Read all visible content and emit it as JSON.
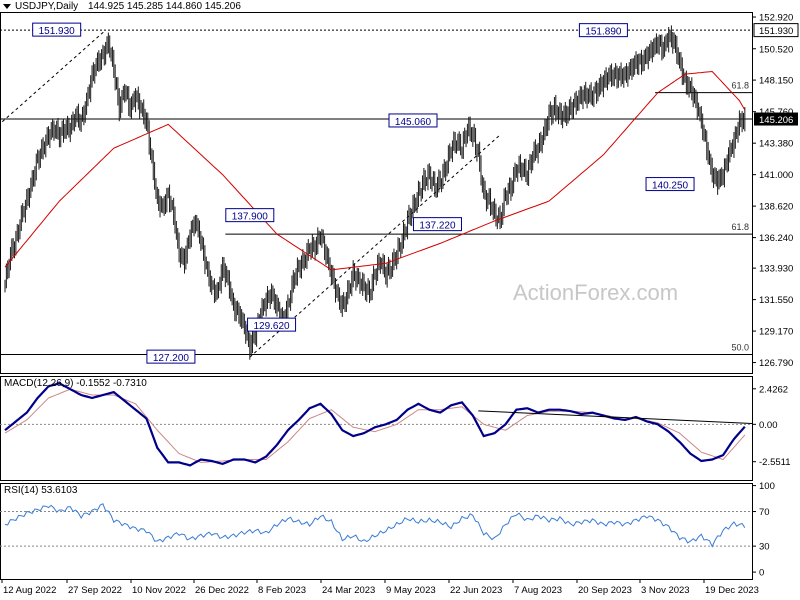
{
  "header": {
    "symbol": "USDJPY,Daily",
    "ohlc": "144.925 145.285 144.860 145.206"
  },
  "watermark": "ActionForex.com",
  "colors": {
    "candle": "#1a1a1a",
    "ema": "#d40000",
    "macd_line": "#00008b",
    "signal_line": "#cc8888",
    "rsi_line": "#3a7bd5",
    "level_line": "#000000",
    "label_border": "#00008b",
    "current_box": "#000000"
  },
  "chart_data": [
    {
      "type": "candlestick",
      "name": "price",
      "ylim": [
        126.0,
        153.3
      ],
      "y_ticks": [
        "152.920",
        "150.520",
        "148.150",
        "145.760",
        "143.380",
        "141.000",
        "138.620",
        "136.240",
        "133.930",
        "131.550",
        "129.170",
        "126.790"
      ],
      "x_ticks": [
        "12 Aug 2022",
        "27 Sep 2022",
        "10 Nov 2022",
        "26 Dec 2022",
        "8 Feb 2023",
        "24 Mar 2023",
        "9 May 2023",
        "22 Jun 2023",
        "7 Aug 2023",
        "20 Sep 2023",
        "3 Nov 2023",
        "19 Dec 2023"
      ],
      "close_path": [
        [
          0,
          132.8
        ],
        [
          4,
          135.0
        ],
        [
          8,
          136.0
        ],
        [
          12,
          137.8
        ],
        [
          16,
          139.0
        ],
        [
          20,
          140.5
        ],
        [
          24,
          142.2
        ],
        [
          28,
          143.0
        ],
        [
          32,
          144.0
        ],
        [
          36,
          144.5
        ],
        [
          40,
          144.0
        ],
        [
          44,
          144.5
        ],
        [
          48,
          144.5
        ],
        [
          52,
          145.5
        ],
        [
          56,
          145.0
        ],
        [
          60,
          146.5
        ],
        [
          64,
          148.5
        ],
        [
          68,
          149.5
        ],
        [
          72,
          150.0
        ],
        [
          76,
          151.0
        ],
        [
          80,
          149.0
        ],
        [
          84,
          146.0
        ],
        [
          88,
          147.5
        ],
        [
          92,
          146.0
        ],
        [
          96,
          147.0
        ],
        [
          100,
          146.0
        ],
        [
          104,
          145.0
        ],
        [
          108,
          142.0
        ],
        [
          112,
          139.0
        ],
        [
          116,
          138.5
        ],
        [
          120,
          139.5
        ],
        [
          124,
          138.0
        ],
        [
          128,
          135.0
        ],
        [
          132,
          134.5
        ],
        [
          136,
          136.5
        ],
        [
          140,
          137.5
        ],
        [
          144,
          136.0
        ],
        [
          148,
          134.0
        ],
        [
          152,
          132.5
        ],
        [
          156,
          132.0
        ],
        [
          160,
          134.0
        ],
        [
          164,
          133.0
        ],
        [
          168,
          131.0
        ],
        [
          172,
          130.5
        ],
        [
          176,
          129.5
        ],
        [
          180,
          128.0
        ],
        [
          184,
          129.0
        ],
        [
          188,
          130.5
        ],
        [
          192,
          131.5
        ],
        [
          196,
          132.0
        ],
        [
          200,
          131.0
        ],
        [
          204,
          130.0
        ],
        [
          208,
          131.0
        ],
        [
          212,
          133.0
        ],
        [
          216,
          134.0
        ],
        [
          220,
          134.5
        ],
        [
          224,
          135.5
        ],
        [
          228,
          135.5
        ],
        [
          232,
          136.5
        ],
        [
          236,
          135.0
        ],
        [
          240,
          133.5
        ],
        [
          244,
          132.0
        ],
        [
          248,
          131.0
        ],
        [
          252,
          132.0
        ],
        [
          256,
          133.5
        ],
        [
          260,
          133.0
        ],
        [
          264,
          132.5
        ],
        [
          268,
          132.0
        ],
        [
          272,
          133.5
        ],
        [
          276,
          134.5
        ],
        [
          280,
          133.5
        ],
        [
          284,
          134.0
        ],
        [
          288,
          135.0
        ],
        [
          292,
          136.0
        ],
        [
          296,
          137.5
        ],
        [
          300,
          138.5
        ],
        [
          304,
          139.5
        ],
        [
          308,
          140.5
        ],
        [
          312,
          141.0
        ],
        [
          316,
          140.0
        ],
        [
          320,
          140.5
        ],
        [
          324,
          141.5
        ],
        [
          328,
          143.0
        ],
        [
          332,
          143.5
        ],
        [
          336,
          143.0
        ],
        [
          340,
          144.5
        ],
        [
          344,
          144.0
        ],
        [
          348,
          142.5
        ],
        [
          352,
          139.5
        ],
        [
          356,
          139.0
        ],
        [
          360,
          138.0
        ],
        [
          364,
          137.5
        ],
        [
          368,
          139.5
        ],
        [
          372,
          140.0
        ],
        [
          376,
          141.5
        ],
        [
          380,
          141.5
        ],
        [
          384,
          141.0
        ],
        [
          388,
          142.5
        ],
        [
          392,
          143.0
        ],
        [
          396,
          144.0
        ],
        [
          400,
          145.5
        ],
        [
          404,
          146.0
        ],
        [
          408,
          145.5
        ],
        [
          412,
          145.5
        ],
        [
          416,
          146.0
        ],
        [
          420,
          146.5
        ],
        [
          424,
          147.0
        ],
        [
          428,
          147.0
        ],
        [
          432,
          147.0
        ],
        [
          436,
          147.5
        ],
        [
          440,
          148.0
        ],
        [
          444,
          148.5
        ],
        [
          448,
          148.5
        ],
        [
          452,
          148.5
        ],
        [
          456,
          148.5
        ],
        [
          460,
          149.0
        ],
        [
          464,
          149.5
        ],
        [
          468,
          149.5
        ],
        [
          472,
          150.0
        ],
        [
          476,
          150.5
        ],
        [
          480,
          151.0
        ],
        [
          484,
          150.5
        ],
        [
          488,
          151.5
        ],
        [
          492,
          151.0
        ],
        [
          496,
          149.5
        ],
        [
          500,
          148.0
        ],
        [
          504,
          147.5
        ],
        [
          508,
          146.5
        ],
        [
          512,
          145.0
        ],
        [
          516,
          143.0
        ],
        [
          520,
          141.0
        ],
        [
          524,
          140.5
        ],
        [
          528,
          141.0
        ],
        [
          532,
          142.5
        ],
        [
          536,
          143.5
        ],
        [
          540,
          145.0
        ],
        [
          544,
          145.2
        ]
      ],
      "moving_average": [
        [
          0,
          134.0
        ],
        [
          40,
          139.0
        ],
        [
          80,
          143.0
        ],
        [
          120,
          144.8
        ],
        [
          160,
          141.0
        ],
        [
          200,
          136.5
        ],
        [
          240,
          133.8
        ],
        [
          280,
          134.3
        ],
        [
          320,
          135.8
        ],
        [
          360,
          137.5
        ],
        [
          400,
          139.0
        ],
        [
          440,
          142.5
        ],
        [
          480,
          147.2
        ],
        [
          500,
          148.6
        ],
        [
          520,
          148.8
        ],
        [
          540,
          146.6
        ],
        [
          544,
          145.9
        ]
      ],
      "levels": [
        {
          "value": 151.93,
          "style": "dotted"
        },
        {
          "value": 145.206,
          "style": "thin"
        },
        {
          "value": 147.2,
          "style": "solid",
          "label": "61.8"
        },
        {
          "value": 136.5,
          "style": "solid",
          "label": "61.8"
        },
        {
          "value": 127.4,
          "style": "solid",
          "label": "50.0"
        }
      ],
      "trendlines": [
        {
          "from": [
            -2,
            145.0
          ],
          "to": [
            74,
            151.93
          ],
          "style": "dashed"
        },
        {
          "from": [
            180,
            127.2
          ],
          "to": [
            364,
            144.0
          ],
          "style": "dashed"
        }
      ],
      "annotations": [
        "151.930",
        "145.060",
        "137.900",
        "137.220",
        "129.620",
        "127.200",
        "151.890",
        "140.250"
      ],
      "current_value": "145.206"
    },
    {
      "type": "line",
      "name": "MACD",
      "title": "MACD(12,26,9) -0.1552 -0.7310",
      "y_ticks": [
        "2.4262",
        "0.00",
        "-2.5511"
      ],
      "ylim": [
        -3.8,
        3.3
      ],
      "macd_path": [
        [
          0,
          -0.4
        ],
        [
          8,
          0.2
        ],
        [
          16,
          0.8
        ],
        [
          24,
          1.8
        ],
        [
          32,
          2.6
        ],
        [
          40,
          2.8
        ],
        [
          48,
          2.4
        ],
        [
          56,
          2.0
        ],
        [
          64,
          1.8
        ],
        [
          72,
          2.0
        ],
        [
          80,
          2.2
        ],
        [
          88,
          1.6
        ],
        [
          96,
          1.0
        ],
        [
          104,
          0.4
        ],
        [
          112,
          -1.6
        ],
        [
          120,
          -2.6
        ],
        [
          128,
          -2.6
        ],
        [
          136,
          -2.8
        ],
        [
          144,
          -2.4
        ],
        [
          152,
          -2.5
        ],
        [
          160,
          -2.7
        ],
        [
          168,
          -2.4
        ],
        [
          176,
          -2.4
        ],
        [
          184,
          -2.6
        ],
        [
          192,
          -2.2
        ],
        [
          200,
          -1.4
        ],
        [
          208,
          -0.4
        ],
        [
          216,
          0.3
        ],
        [
          224,
          1.1
        ],
        [
          232,
          1.4
        ],
        [
          240,
          0.7
        ],
        [
          248,
          -0.4
        ],
        [
          256,
          -0.8
        ],
        [
          264,
          -0.6
        ],
        [
          272,
          -0.2
        ],
        [
          280,
          0.0
        ],
        [
          288,
          0.3
        ],
        [
          296,
          1.0
        ],
        [
          304,
          1.4
        ],
        [
          312,
          1.0
        ],
        [
          320,
          0.8
        ],
        [
          328,
          1.3
        ],
        [
          336,
          1.5
        ],
        [
          344,
          0.6
        ],
        [
          352,
          -0.8
        ],
        [
          360,
          -0.6
        ],
        [
          368,
          0.0
        ],
        [
          376,
          1.0
        ],
        [
          384,
          1.1
        ],
        [
          392,
          0.8
        ],
        [
          400,
          1.0
        ],
        [
          408,
          1.0
        ],
        [
          416,
          0.9
        ],
        [
          424,
          0.7
        ],
        [
          432,
          0.8
        ],
        [
          440,
          0.6
        ],
        [
          448,
          0.4
        ],
        [
          456,
          0.3
        ],
        [
          464,
          0.5
        ],
        [
          472,
          0.2
        ],
        [
          480,
          0.0
        ],
        [
          488,
          -0.5
        ],
        [
          496,
          -1.2
        ],
        [
          504,
          -2.0
        ],
        [
          512,
          -2.5
        ],
        [
          520,
          -2.4
        ],
        [
          528,
          -2.1
        ],
        [
          536,
          -1.0
        ],
        [
          544,
          -0.16
        ]
      ],
      "signal_path": [
        [
          0,
          -0.6
        ],
        [
          16,
          0.3
        ],
        [
          32,
          1.8
        ],
        [
          48,
          2.4
        ],
        [
          64,
          2.0
        ],
        [
          80,
          2.0
        ],
        [
          96,
          1.4
        ],
        [
          112,
          -0.4
        ],
        [
          128,
          -2.0
        ],
        [
          144,
          -2.6
        ],
        [
          160,
          -2.5
        ],
        [
          176,
          -2.4
        ],
        [
          192,
          -2.4
        ],
        [
          208,
          -1.2
        ],
        [
          224,
          0.4
        ],
        [
          240,
          1.0
        ],
        [
          256,
          -0.2
        ],
        [
          272,
          -0.5
        ],
        [
          288,
          0.0
        ],
        [
          304,
          1.0
        ],
        [
          320,
          1.0
        ],
        [
          336,
          1.2
        ],
        [
          352,
          0.0
        ],
        [
          368,
          -0.4
        ],
        [
          384,
          0.6
        ],
        [
          400,
          0.9
        ],
        [
          416,
          0.9
        ],
        [
          432,
          0.8
        ],
        [
          448,
          0.5
        ],
        [
          464,
          0.4
        ],
        [
          480,
          0.1
        ],
        [
          496,
          -0.6
        ],
        [
          512,
          -1.9
        ],
        [
          528,
          -2.4
        ],
        [
          544,
          -0.73
        ]
      ],
      "trendline": {
        "from": [
          348,
          0.92
        ],
        "to": [
          550,
          0.05
        ]
      }
    },
    {
      "type": "line",
      "name": "RSI",
      "title": "RSI(14) 53.6103",
      "y_ticks": [
        "100",
        "70",
        "30",
        "0"
      ],
      "ylim": [
        -8,
        103
      ],
      "rsi_path": [
        [
          0,
          55
        ],
        [
          8,
          62
        ],
        [
          16,
          68
        ],
        [
          24,
          72
        ],
        [
          32,
          77
        ],
        [
          40,
          70
        ],
        [
          48,
          75
        ],
        [
          56,
          65
        ],
        [
          64,
          70
        ],
        [
          72,
          78
        ],
        [
          80,
          60
        ],
        [
          88,
          55
        ],
        [
          96,
          50
        ],
        [
          104,
          48
        ],
        [
          112,
          35
        ],
        [
          120,
          40
        ],
        [
          128,
          45
        ],
        [
          136,
          38
        ],
        [
          144,
          42
        ],
        [
          152,
          45
        ],
        [
          160,
          40
        ],
        [
          168,
          42
        ],
        [
          176,
          46
        ],
        [
          184,
          48
        ],
        [
          192,
          45
        ],
        [
          200,
          55
        ],
        [
          208,
          62
        ],
        [
          216,
          58
        ],
        [
          224,
          55
        ],
        [
          232,
          65
        ],
        [
          240,
          58
        ],
        [
          248,
          38
        ],
        [
          256,
          42
        ],
        [
          264,
          35
        ],
        [
          272,
          42
        ],
        [
          280,
          48
        ],
        [
          288,
          55
        ],
        [
          296,
          62
        ],
        [
          304,
          58
        ],
        [
          312,
          60
        ],
        [
          320,
          58
        ],
        [
          328,
          52
        ],
        [
          336,
          62
        ],
        [
          344,
          66
        ],
        [
          352,
          45
        ],
        [
          360,
          38
        ],
        [
          368,
          55
        ],
        [
          376,
          68
        ],
        [
          384,
          60
        ],
        [
          392,
          65
        ],
        [
          400,
          60
        ],
        [
          408,
          62
        ],
        [
          416,
          55
        ],
        [
          424,
          58
        ],
        [
          432,
          60
        ],
        [
          440,
          55
        ],
        [
          448,
          58
        ],
        [
          456,
          55
        ],
        [
          464,
          60
        ],
        [
          472,
          65
        ],
        [
          480,
          60
        ],
        [
          488,
          52
        ],
        [
          496,
          40
        ],
        [
          504,
          35
        ],
        [
          512,
          42
        ],
        [
          520,
          32
        ],
        [
          528,
          48
        ],
        [
          536,
          56
        ],
        [
          544,
          53.6
        ]
      ]
    }
  ]
}
